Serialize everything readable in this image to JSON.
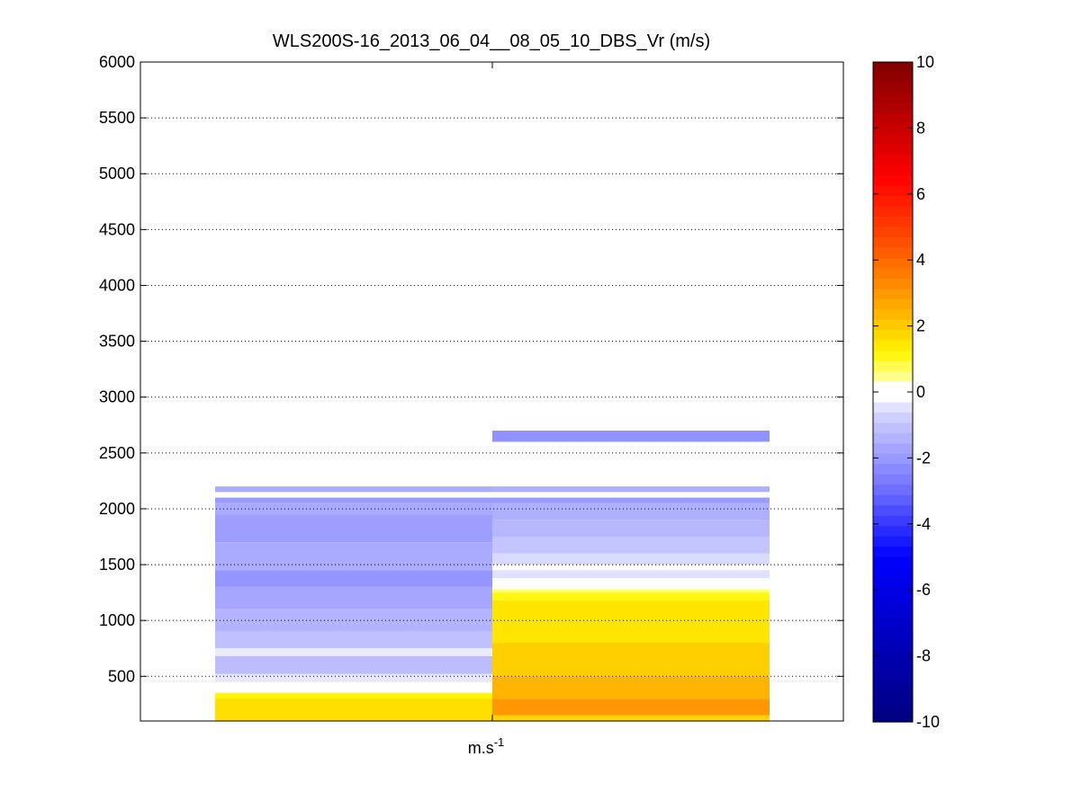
{
  "chart_data": {
    "type": "heatmap",
    "title": "WLS200S-16_2013_06_04__08_05_10_DBS_Vr (m/s)",
    "xlabel": "m.s",
    "xlabel_superscript": "-1",
    "ylabel": "",
    "ylim": [
      100,
      6000
    ],
    "yticks": [
      500,
      1000,
      1500,
      2000,
      2500,
      3000,
      3500,
      4000,
      4500,
      5000,
      5500,
      6000
    ],
    "grid": "horizontal dotted",
    "colorbar": {
      "range": [
        -10,
        10
      ],
      "ticks": [
        10,
        8,
        6,
        4,
        2,
        0,
        -2,
        -4,
        -6,
        -8,
        -10
      ],
      "colormap": "blue-white-red (jet-like diverging, negative blue, positive yellow-red)",
      "low_color": "#00007f",
      "mid_color": "#ffffff",
      "high_color": "#7f0000"
    },
    "columns": [
      {
        "index": 1,
        "segments": [
          {
            "from": 2150,
            "to": 2200,
            "value": -1.6
          },
          {
            "from": 2050,
            "to": 2100,
            "value": -2.0
          },
          {
            "from": 1950,
            "to": 2050,
            "value": -1.6
          },
          {
            "from": 1700,
            "to": 1950,
            "value": -1.9
          },
          {
            "from": 1450,
            "to": 1700,
            "value": -1.6
          },
          {
            "from": 1300,
            "to": 1450,
            "value": -2.1
          },
          {
            "from": 1100,
            "to": 1300,
            "value": -1.7
          },
          {
            "from": 900,
            "to": 1100,
            "value": -1.4
          },
          {
            "from": 750,
            "to": 900,
            "value": -1.1
          },
          {
            "from": 680,
            "to": 750,
            "value": -0.3
          },
          {
            "from": 520,
            "to": 680,
            "value": -1.2
          },
          {
            "from": 450,
            "to": 520,
            "value": -0.4
          },
          {
            "from": 350,
            "to": 450,
            "value": 0.0
          },
          {
            "from": 300,
            "to": 350,
            "value": 1.2
          },
          {
            "from": 100,
            "to": 300,
            "value": 1.6
          }
        ]
      },
      {
        "index": 2,
        "segments": [
          {
            "from": 2600,
            "to": 2700,
            "value": -2.2
          },
          {
            "from": 2150,
            "to": 2200,
            "value": -1.5
          },
          {
            "from": 2050,
            "to": 2100,
            "value": -2.0
          },
          {
            "from": 1900,
            "to": 2050,
            "value": -1.5
          },
          {
            "from": 1750,
            "to": 1900,
            "value": -1.3
          },
          {
            "from": 1600,
            "to": 1750,
            "value": -1.0
          },
          {
            "from": 1500,
            "to": 1600,
            "value": -0.6
          },
          {
            "from": 1450,
            "to": 1500,
            "value": 0.0
          },
          {
            "from": 1380,
            "to": 1450,
            "value": -0.5
          },
          {
            "from": 1280,
            "to": 1380,
            "value": 0.0
          },
          {
            "from": 1250,
            "to": 1280,
            "value": 0.6
          },
          {
            "from": 1180,
            "to": 1250,
            "value": 1.1
          },
          {
            "from": 800,
            "to": 1180,
            "value": 1.5
          },
          {
            "from": 500,
            "to": 800,
            "value": 1.9
          },
          {
            "from": 300,
            "to": 500,
            "value": 2.4
          },
          {
            "from": 150,
            "to": 300,
            "value": 3.0
          },
          {
            "from": 100,
            "to": 150,
            "value": 1.8
          }
        ]
      }
    ]
  }
}
